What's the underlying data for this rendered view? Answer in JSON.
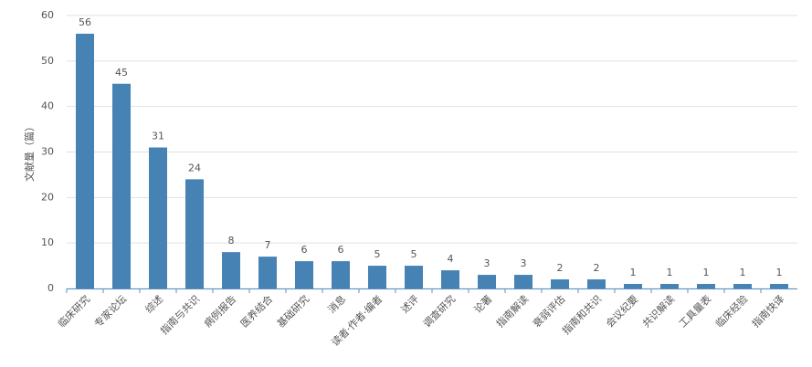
{
  "chart_data": {
    "type": "bar",
    "y_label": "文献量（篇）",
    "categories": [
      "临床研究",
      "专家论坛",
      "综述",
      "指南与共识",
      "病例报告",
      "医养结合",
      "基础研究",
      "消息",
      "读者·作者·编者",
      "述评",
      "调查研究",
      "论著",
      "指南解读",
      "衰弱评估",
      "指南和共识",
      "会议纪要",
      "共识解读",
      "工具量表",
      "临床经验",
      "指南快译"
    ],
    "values": [
      56,
      45,
      31,
      24,
      8,
      7,
      6,
      6,
      5,
      5,
      4,
      3,
      3,
      2,
      2,
      1,
      1,
      1,
      1,
      1
    ],
    "color": "#4682b4",
    "ylim": [
      0,
      60
    ],
    "yticks": [
      0,
      10,
      20,
      30,
      40,
      50,
      60
    ],
    "grid": true
  }
}
